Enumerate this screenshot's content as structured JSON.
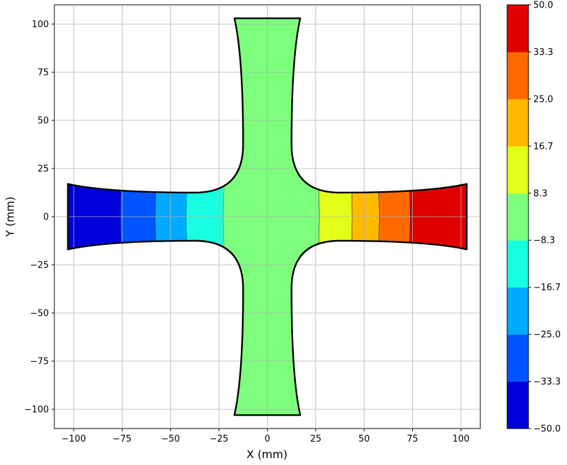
{
  "chart_data": {
    "type": "contour",
    "title": "",
    "xlabel": "X (mm)",
    "ylabel": "Y (mm)",
    "xlim": [
      -110,
      110
    ],
    "ylim": [
      -110,
      110
    ],
    "grid": true,
    "x_ticks": [
      -100,
      -75,
      -50,
      -25,
      0,
      25,
      50,
      75,
      100
    ],
    "y_ticks": [
      -100,
      -75,
      -50,
      -25,
      0,
      25,
      50,
      75,
      100
    ],
    "x_tick_labels": [
      "−100",
      "−75",
      "−50",
      "−25",
      "0",
      "25",
      "50",
      "75",
      "100"
    ],
    "y_tick_labels": [
      "−100",
      "−75",
      "−50",
      "−25",
      "0",
      "25",
      "50",
      "75",
      "100"
    ],
    "geometry": {
      "description": "cruciform specimen",
      "arm_outer_extent_mm": 103,
      "arm_end_half_width_mm": 17,
      "arm_min_half_width_mm": 12.5,
      "fillet_radius_mm": 25
    },
    "contour_bands": [
      {
        "range": [
          -50.0,
          -33.3
        ],
        "color": "#0000dd",
        "x_range_mm": [
          -103,
          -75
        ]
      },
      {
        "range": [
          -33.3,
          -25.0
        ],
        "color": "#0055ff",
        "x_range_mm": [
          -75,
          -57
        ]
      },
      {
        "range": [
          -25.0,
          -16.7
        ],
        "color": "#00aaff",
        "x_range_mm": [
          -57,
          -41
        ]
      },
      {
        "range": [
          -16.7,
          -8.3
        ],
        "color": "#17ffe0",
        "x_range_mm": [
          -41,
          -22
        ]
      },
      {
        "range": [
          -8.3,
          8.3
        ],
        "color": "#7dff7d",
        "x_range_mm": [
          -22,
          26
        ]
      },
      {
        "range": [
          8.3,
          16.7
        ],
        "color": "#e3ff17",
        "x_range_mm": [
          26,
          43
        ]
      },
      {
        "range": [
          16.7,
          25.0
        ],
        "color": "#ffba00",
        "x_range_mm": [
          43,
          57
        ]
      },
      {
        "range": [
          25.0,
          33.3
        ],
        "color": "#ff6a00",
        "x_range_mm": [
          57,
          73
        ]
      },
      {
        "range": [
          33.3,
          50.0
        ],
        "color": "#e00000",
        "x_range_mm": [
          73,
          103
        ]
      }
    ],
    "colorbar": {
      "levels": [
        -50.0,
        -33.3,
        -25.0,
        -16.7,
        -8.3,
        8.3,
        16.7,
        25.0,
        33.3,
        50.0
      ],
      "tick_labels": [
        "−50.0",
        "−33.3",
        "−25.0",
        "−16.7",
        "−8.3",
        "8.3",
        "16.7",
        "25.0",
        "33.3",
        "50.0"
      ],
      "colors": [
        "#0000dd",
        "#0055ff",
        "#00aaff",
        "#17ffe0",
        "#7dff7d",
        "#e3ff17",
        "#ffba00",
        "#ff6a00",
        "#e00000"
      ]
    }
  }
}
